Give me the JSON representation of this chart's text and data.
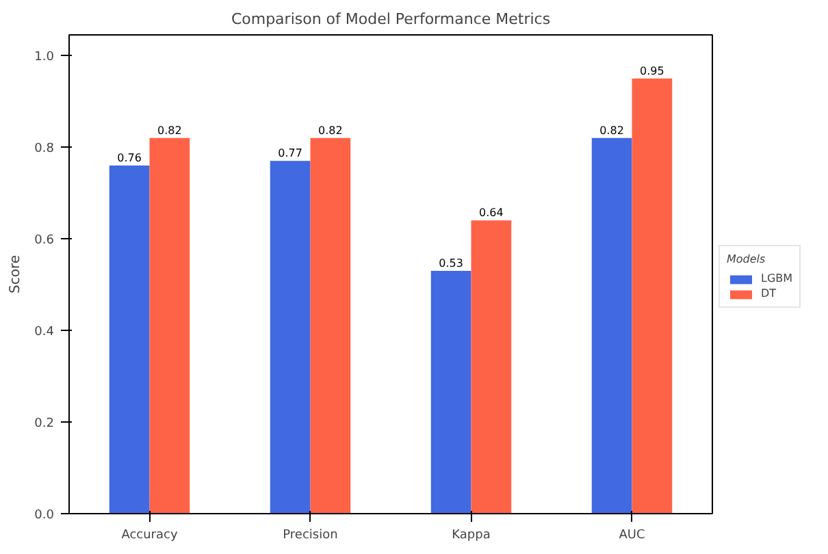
{
  "chart_data": {
    "type": "bar",
    "title": "Comparison of Model Performance Metrics",
    "ylabel": "Score",
    "legend_title": "Models",
    "categories": [
      "Accuracy",
      "Precision",
      "Kappa",
      "AUC"
    ],
    "series": [
      {
        "name": "LGBM",
        "color": "#4169e1",
        "values": [
          0.76,
          0.77,
          0.53,
          0.82
        ]
      },
      {
        "name": "DT",
        "color": "#ff6347",
        "values": [
          0.82,
          0.82,
          0.64,
          0.95
        ]
      }
    ],
    "ylim": [
      0,
      1.045
    ],
    "yticks": [
      {
        "value": 0,
        "label": "0.0"
      },
      {
        "value": 0.2,
        "label": "0.2"
      },
      {
        "value": 0.4,
        "label": "0.4"
      },
      {
        "value": 0.6,
        "label": "0.6"
      },
      {
        "value": 0.8,
        "label": "0.8"
      },
      {
        "value": 1,
        "label": "1.0"
      }
    ],
    "data_labels": true,
    "grid": false,
    "legend": "right"
  }
}
